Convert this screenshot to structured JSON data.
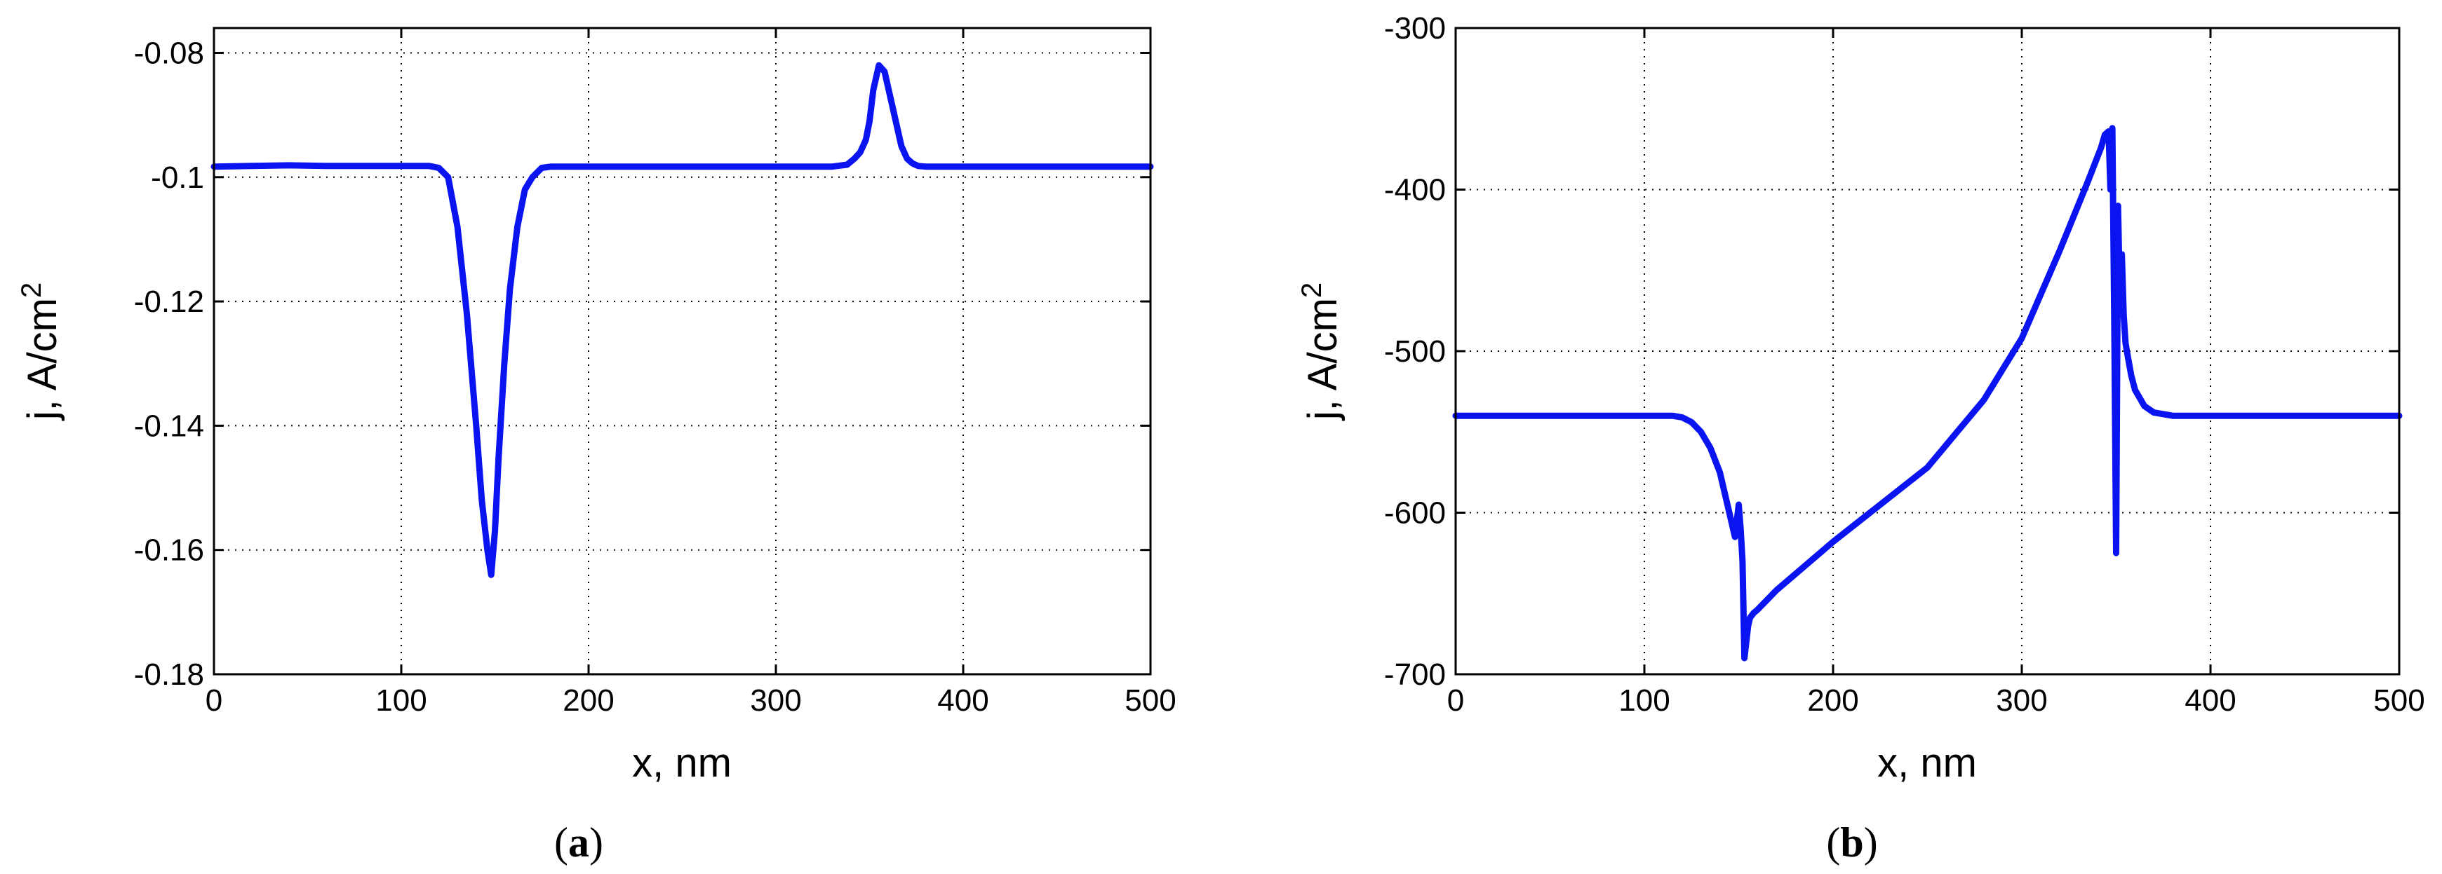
{
  "colors": {
    "series": "#0a14f0"
  },
  "chart_data": [
    {
      "type": "line",
      "panel_label": {
        "open": "(",
        "letter": "a",
        "close": ")"
      },
      "xlabel": "x,  nm",
      "ylabel_base": "j,  A/cm",
      "ylabel_sup": "2",
      "xlim": [
        0,
        500
      ],
      "ylim": [
        -0.18,
        -0.076
      ],
      "xticks": [
        0,
        100,
        200,
        300,
        400,
        500
      ],
      "xtick_labels": [
        "0",
        "100",
        "200",
        "300",
        "400",
        "500"
      ],
      "yticks": [
        -0.18,
        -0.16,
        -0.14,
        -0.12,
        -0.1,
        -0.08
      ],
      "ytick_labels": [
        "-0.18",
        "-0.16",
        "-0.14",
        "-0.12",
        "-0.1",
        "-0.08"
      ],
      "grid": true,
      "series": [
        {
          "x": [
            0,
            20,
            40,
            60,
            80,
            100,
            115,
            120,
            125,
            130,
            135,
            140,
            143,
            146,
            148,
            150,
            152,
            155,
            158,
            162,
            166,
            170,
            175,
            180,
            200,
            250,
            300,
            330,
            338,
            342,
            345,
            348,
            350,
            352,
            355,
            358,
            361,
            364,
            367,
            370,
            373,
            376,
            380,
            385,
            390,
            400,
            450,
            500
          ],
          "y": [
            -0.0983,
            -0.0982,
            -0.0981,
            -0.0982,
            -0.0982,
            -0.0982,
            -0.0982,
            -0.0985,
            -0.1,
            -0.108,
            -0.122,
            -0.14,
            -0.152,
            -0.16,
            -0.164,
            -0.157,
            -0.145,
            -0.13,
            -0.118,
            -0.108,
            -0.102,
            -0.1,
            -0.0985,
            -0.0983,
            -0.0983,
            -0.0983,
            -0.0983,
            -0.0983,
            -0.098,
            -0.097,
            -0.096,
            -0.094,
            -0.091,
            -0.086,
            -0.082,
            -0.083,
            -0.087,
            -0.091,
            -0.095,
            -0.097,
            -0.0978,
            -0.0982,
            -0.0983,
            -0.0983,
            -0.0983,
            -0.0983,
            -0.0983,
            -0.0983
          ]
        }
      ]
    },
    {
      "type": "line",
      "panel_label": {
        "open": "(",
        "letter": "b",
        "close": ")"
      },
      "xlabel": "x,  nm",
      "ylabel_base": "j,  A/cm",
      "ylabel_sup": "2",
      "xlim": [
        0,
        500
      ],
      "ylim": [
        -700,
        -300
      ],
      "xticks": [
        0,
        100,
        200,
        300,
        400,
        500
      ],
      "xtick_labels": [
        "0",
        "100",
        "200",
        "300",
        "400",
        "500"
      ],
      "yticks": [
        -700,
        -600,
        -500,
        -400,
        -300
      ],
      "ytick_labels": [
        "-700",
        "-600",
        "-500",
        "-400",
        "-300"
      ],
      "grid": true,
      "series": [
        {
          "x": [
            0,
            50,
            100,
            115,
            120,
            125,
            130,
            135,
            140,
            145,
            148,
            150,
            151,
            152,
            153,
            154,
            155,
            156,
            158,
            160,
            170,
            180,
            200,
            250,
            280,
            300,
            320,
            335,
            342,
            344,
            346,
            347,
            348,
            349,
            350,
            351,
            352,
            353,
            354,
            355,
            356,
            358,
            360,
            365,
            370,
            380,
            400,
            450,
            500
          ],
          "y": [
            -540,
            -540,
            -540,
            -540,
            -541,
            -544,
            -550,
            -560,
            -575,
            -600,
            -615,
            -595,
            -610,
            -630,
            -690,
            -680,
            -670,
            -665,
            -662,
            -660,
            -648,
            -638,
            -618,
            -572,
            -530,
            -492,
            -438,
            -395,
            -374,
            -366,
            -364,
            -400,
            -362,
            -480,
            -625,
            -410,
            -470,
            -440,
            -478,
            -495,
            -502,
            -515,
            -524,
            -534,
            -538,
            -540,
            -540,
            -540,
            -540
          ]
        }
      ]
    }
  ]
}
